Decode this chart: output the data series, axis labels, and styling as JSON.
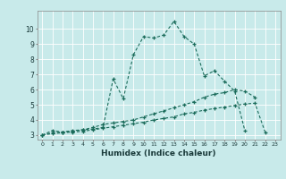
{
  "xlabel": "Humidex (Indice chaleur)",
  "ylabel": "",
  "bg_color": "#c8eaea",
  "grid_color": "#aad4d4",
  "line_color": "#1a6b5a",
  "xlim": [
    -0.5,
    23.5
  ],
  "ylim": [
    2.7,
    11.2
  ],
  "xticks": [
    0,
    1,
    2,
    3,
    4,
    5,
    6,
    7,
    8,
    9,
    10,
    11,
    12,
    13,
    14,
    15,
    16,
    17,
    18,
    19,
    20,
    21,
    22,
    23
  ],
  "yticks": [
    3,
    4,
    5,
    6,
    7,
    8,
    9,
    10
  ],
  "line1_x": [
    0,
    1,
    2,
    3,
    4,
    5,
    6,
    7,
    8,
    9,
    10,
    11,
    12,
    13,
    14,
    15,
    16,
    17,
    18,
    19,
    20
  ],
  "line1_y": [
    3.0,
    3.3,
    3.2,
    3.3,
    3.35,
    3.4,
    3.5,
    6.7,
    5.4,
    8.3,
    9.5,
    9.4,
    9.6,
    10.5,
    9.5,
    9.0,
    6.9,
    7.25,
    6.55,
    5.9,
    3.3
  ],
  "line2_x": [
    0,
    1,
    2,
    3,
    4,
    5,
    6,
    7,
    8,
    9,
    10,
    11,
    12,
    13,
    14,
    15,
    16,
    17,
    18,
    19,
    20,
    21
  ],
  "line2_y": [
    3.0,
    3.15,
    3.2,
    3.25,
    3.35,
    3.5,
    3.7,
    3.8,
    3.9,
    4.0,
    4.2,
    4.4,
    4.6,
    4.8,
    5.0,
    5.2,
    5.5,
    5.7,
    5.8,
    6.0,
    5.9,
    5.5
  ],
  "line3_x": [
    0,
    1,
    2,
    3,
    4,
    5,
    6,
    7,
    8,
    9,
    10,
    11,
    12,
    13,
    14,
    15,
    16,
    17,
    18,
    19,
    20,
    21,
    22
  ],
  "line3_y": [
    3.0,
    3.1,
    3.15,
    3.2,
    3.25,
    3.35,
    3.45,
    3.55,
    3.65,
    3.75,
    3.85,
    4.0,
    4.1,
    4.2,
    4.4,
    4.5,
    4.65,
    4.75,
    4.85,
    4.95,
    5.05,
    5.1,
    3.2
  ]
}
